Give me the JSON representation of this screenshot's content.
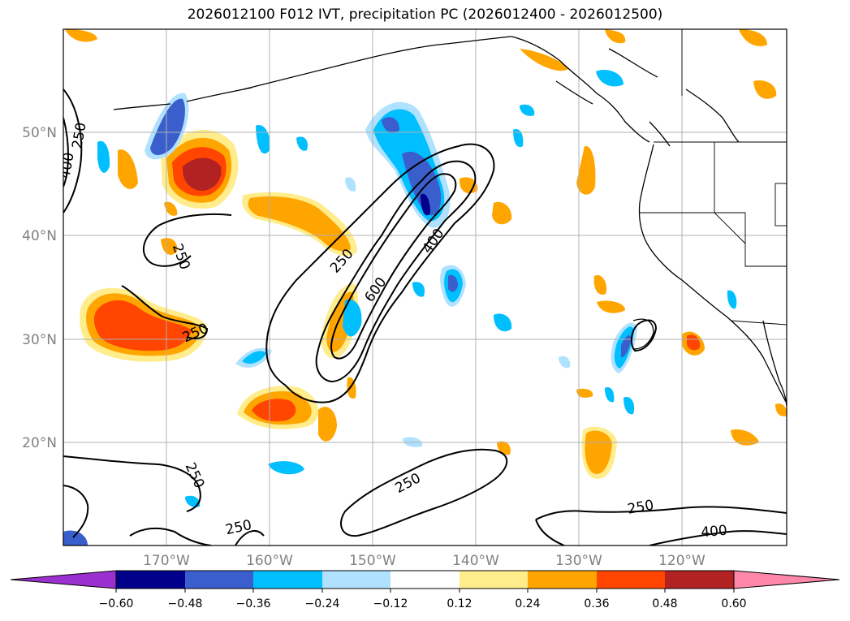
{
  "title": "2026012100 F012 IVT, precipitation PC (2026012400 - 2026012500)",
  "lat_labels": [
    "50°N",
    "40°N",
    "30°N",
    "20°N"
  ],
  "lon_labels": [
    "170°W",
    "160°W",
    "150°W",
    "140°W",
    "130°W",
    "120°W"
  ],
  "colorbar": {
    "ticks": [
      "−0.60",
      "−0.48",
      "−0.36",
      "−0.24",
      "−0.12",
      "0.12",
      "0.24",
      "0.36",
      "0.48",
      "0.60"
    ],
    "colors": [
      "#9b30d0",
      "#00008b",
      "#3a5fcd",
      "#00bfff",
      "#b0e2ff",
      "#ffffff",
      "#ffec8b",
      "#ffa500",
      "#ff4500",
      "#b22222",
      "#ff88aa"
    ]
  },
  "contour_labels": {
    "l250_nw": "250",
    "l400_nw": "400",
    "l250_low": "250",
    "l250_west": "250",
    "l250_jet": "250",
    "l600_jet": "600",
    "l400_jet": "400",
    "l250_south1": "250",
    "l250_south2": "250",
    "l250_south3": "250",
    "l250_se": "250",
    "l400_se": "400"
  },
  "colors": {
    "yellow": "#ffec8b",
    "orange": "#ffa500",
    "red_orange": "#ff4500",
    "dark_red": "#b22222",
    "light_blue": "#b0e2ff",
    "sky_blue": "#00bfff",
    "royal_blue": "#3a5fcd",
    "navy": "#00008b"
  }
}
